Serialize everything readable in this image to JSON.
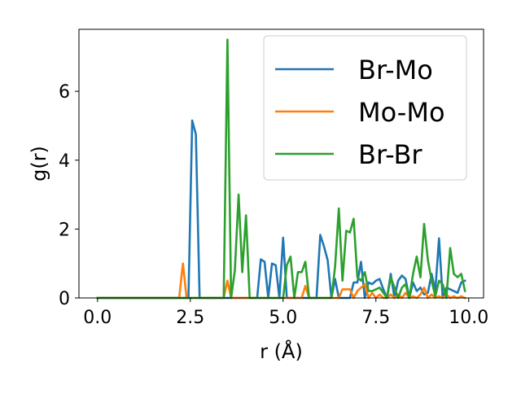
{
  "chart_data": {
    "type": "line",
    "title": "",
    "xlabel": "r (Å)",
    "ylabel": "g(r)",
    "xlim": [
      -0.5,
      10.4
    ],
    "ylim": [
      0,
      7.8
    ],
    "xticks": [
      0.0,
      2.5,
      5.0,
      7.5,
      10.0
    ],
    "xtick_labels": [
      "0.0",
      "2.5",
      "5.0",
      "7.5",
      "10.0"
    ],
    "yticks": [
      0,
      2,
      4,
      6
    ],
    "ytick_labels": [
      "0",
      "2",
      "4",
      "6"
    ],
    "grid": false,
    "legend_position": "upper-right",
    "series": [
      {
        "name": "Br-Mo",
        "color": "#1f77b4",
        "x": [
          0.0,
          2.35,
          2.45,
          2.55,
          2.65,
          2.75,
          4.2,
          4.3,
          4.4,
          4.5,
          4.6,
          4.7,
          4.8,
          4.9,
          5.0,
          5.1,
          5.7,
          5.8,
          5.9,
          6.0,
          6.1,
          6.2,
          6.3,
          6.4,
          6.5,
          6.6,
          6.7,
          6.8,
          6.9,
          7.0,
          7.1,
          7.2,
          7.3,
          7.4,
          7.5,
          7.6,
          7.7,
          7.8,
          7.9,
          8.0,
          8.1,
          8.2,
          8.3,
          8.4,
          8.5,
          8.6,
          8.7,
          8.8,
          8.9,
          9.0,
          9.1,
          9.2,
          9.3,
          9.4,
          9.5,
          9.6,
          9.7,
          9.8,
          9.9
        ],
        "y": [
          0.0,
          0.0,
          0.0,
          5.15,
          4.75,
          0.0,
          0.0,
          0.0,
          1.12,
          1.05,
          0.0,
          1.0,
          0.95,
          0.0,
          1.75,
          0.0,
          0.0,
          0.0,
          0.0,
          1.83,
          1.5,
          1.1,
          0.0,
          0.55,
          0.0,
          0.0,
          0.0,
          0.0,
          0.45,
          0.45,
          1.05,
          0.0,
          0.45,
          0.4,
          0.5,
          0.55,
          0.25,
          0.0,
          0.7,
          0.0,
          0.5,
          0.65,
          0.55,
          0.0,
          0.45,
          0.2,
          0.3,
          0.1,
          0.15,
          0.7,
          0.2,
          1.73,
          0.0,
          0.3,
          0.25,
          0.2,
          0.15,
          0.45,
          0.5
        ]
      },
      {
        "name": "Mo-Mo",
        "color": "#ff7f0e",
        "x": [
          0.0,
          2.1,
          2.2,
          2.3,
          2.4,
          2.5,
          3.3,
          3.4,
          3.5,
          3.6,
          5.4,
          5.5,
          5.6,
          5.7,
          6.4,
          6.5,
          6.6,
          6.7,
          6.8,
          6.9,
          7.0,
          7.1,
          7.2,
          7.3,
          7.4,
          7.5,
          7.6,
          7.7,
          7.8,
          7.9,
          8.0,
          8.1,
          8.2,
          8.3,
          8.4,
          8.5,
          8.6,
          8.7,
          8.8,
          8.9,
          9.0,
          9.1,
          9.2,
          9.3,
          9.4,
          9.5,
          9.6,
          9.7,
          9.8,
          9.9
        ],
        "y": [
          0.0,
          0.0,
          0.0,
          1.0,
          0.0,
          0.0,
          0.0,
          0.0,
          0.5,
          0.0,
          0.0,
          0.0,
          0.35,
          0.0,
          0.0,
          0.0,
          0.25,
          0.25,
          0.25,
          0.0,
          0.2,
          0.3,
          0.4,
          0.0,
          0.15,
          0.0,
          0.1,
          0.0,
          0.0,
          0.1,
          0.0,
          0.1,
          0.0,
          0.15,
          0.0,
          0.05,
          0.0,
          0.1,
          0.3,
          0.0,
          0.1,
          0.0,
          0.05,
          0.0,
          0.1,
          0.0,
          0.05,
          0.0,
          0.05,
          0.0
        ]
      },
      {
        "name": "Br-Br",
        "color": "#2ca02c",
        "x": [
          0.0,
          3.4,
          3.5,
          3.6,
          3.7,
          3.8,
          3.9,
          4.0,
          4.1,
          4.2,
          5.0,
          5.1,
          5.2,
          5.3,
          5.4,
          5.5,
          5.6,
          5.7,
          5.8,
          5.9,
          6.0,
          6.1,
          6.2,
          6.3,
          6.4,
          6.5,
          6.6,
          6.7,
          6.8,
          6.9,
          7.0,
          7.1,
          7.2,
          7.3,
          7.4,
          7.5,
          7.6,
          7.7,
          7.8,
          7.9,
          8.0,
          8.1,
          8.2,
          8.3,
          8.4,
          8.5,
          8.6,
          8.7,
          8.8,
          8.9,
          9.0,
          9.1,
          9.2,
          9.3,
          9.4,
          9.5,
          9.6,
          9.7,
          9.8,
          9.9
        ],
        "y": [
          0.0,
          0.0,
          7.5,
          0.0,
          0.8,
          3.0,
          0.75,
          2.4,
          0.0,
          0.0,
          0.0,
          0.95,
          1.2,
          0.0,
          0.75,
          0.75,
          1.05,
          0.0,
          0.0,
          0.0,
          0.0,
          0.0,
          0.0,
          0.0,
          0.9,
          2.6,
          0.5,
          1.95,
          1.9,
          2.3,
          0.6,
          0.5,
          0.75,
          0.2,
          0.2,
          0.25,
          0.3,
          0.15,
          0.0,
          0.6,
          0.3,
          0.0,
          0.3,
          0.4,
          0.0,
          0.7,
          1.2,
          0.6,
          2.15,
          1.1,
          0.5,
          0.05,
          0.5,
          0.4,
          0.0,
          1.45,
          0.7,
          0.6,
          0.7,
          0.2
        ]
      }
    ]
  }
}
